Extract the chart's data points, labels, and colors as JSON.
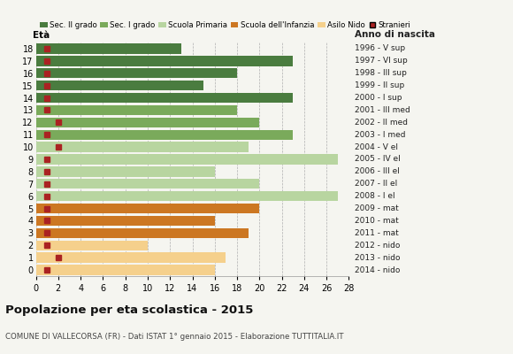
{
  "ages": [
    18,
    17,
    16,
    15,
    14,
    13,
    12,
    11,
    10,
    9,
    8,
    7,
    6,
    5,
    4,
    3,
    2,
    1,
    0
  ],
  "anni_nascita": [
    "1996 - V sup",
    "1997 - VI sup",
    "1998 - III sup",
    "1999 - II sup",
    "2000 - I sup",
    "2001 - III med",
    "2002 - II med",
    "2003 - I med",
    "2004 - V el",
    "2005 - IV el",
    "2006 - III el",
    "2007 - II el",
    "2008 - I el",
    "2009 - mat",
    "2010 - mat",
    "2011 - mat",
    "2012 - nido",
    "2013 - nido",
    "2014 - nido"
  ],
  "bar_values": [
    13,
    23,
    18,
    15,
    23,
    18,
    20,
    23,
    19,
    27,
    16,
    20,
    27,
    20,
    16,
    19,
    10,
    17,
    16
  ],
  "stranieri": [
    1,
    1,
    1,
    1,
    1,
    1,
    2,
    1,
    2,
    1,
    1,
    1,
    1,
    1,
    1,
    1,
    1,
    2,
    1
  ],
  "age_colors": {
    "18": "#4a7c3f",
    "17": "#4a7c3f",
    "16": "#4a7c3f",
    "15": "#4a7c3f",
    "14": "#4a7c3f",
    "13": "#7aaa5b",
    "12": "#7aaa5b",
    "11": "#7aaa5b",
    "10": "#b8d5a0",
    "9": "#b8d5a0",
    "8": "#b8d5a0",
    "7": "#b8d5a0",
    "6": "#b8d5a0",
    "5": "#cc7722",
    "4": "#cc7722",
    "3": "#cc7722",
    "2": "#f5d08c",
    "1": "#f5d08c",
    "0": "#f5d08c"
  },
  "stranieri_color": "#aa2222",
  "stranieri_size": 5,
  "xlim": [
    0,
    28
  ],
  "xticks": [
    0,
    2,
    4,
    6,
    8,
    10,
    12,
    14,
    16,
    18,
    20,
    22,
    24,
    26,
    28
  ],
  "title": "Popolazione per eta scolastica - 2015",
  "subtitle": "COMUNE DI VALLECORSA (FR) - Dati ISTAT 1° gennaio 2015 - Elaborazione TUTTITALIA.IT",
  "bg_color": "#f5f5f0",
  "bar_height": 0.82,
  "legend_labels": [
    "Sec. II grado",
    "Sec. I grado",
    "Scuola Primaria",
    "Scuola dell'Infanzia",
    "Asilo Nido",
    "Stranieri"
  ],
  "legend_colors": [
    "#4a7c3f",
    "#7aaa5b",
    "#b8d5a0",
    "#cc7722",
    "#f5d08c",
    "#aa2222"
  ],
  "xlabel_eta": "Età",
  "xlabel_anno": "Anno di nascita",
  "ylim_min": -0.5,
  "ylim_max": 18.5
}
